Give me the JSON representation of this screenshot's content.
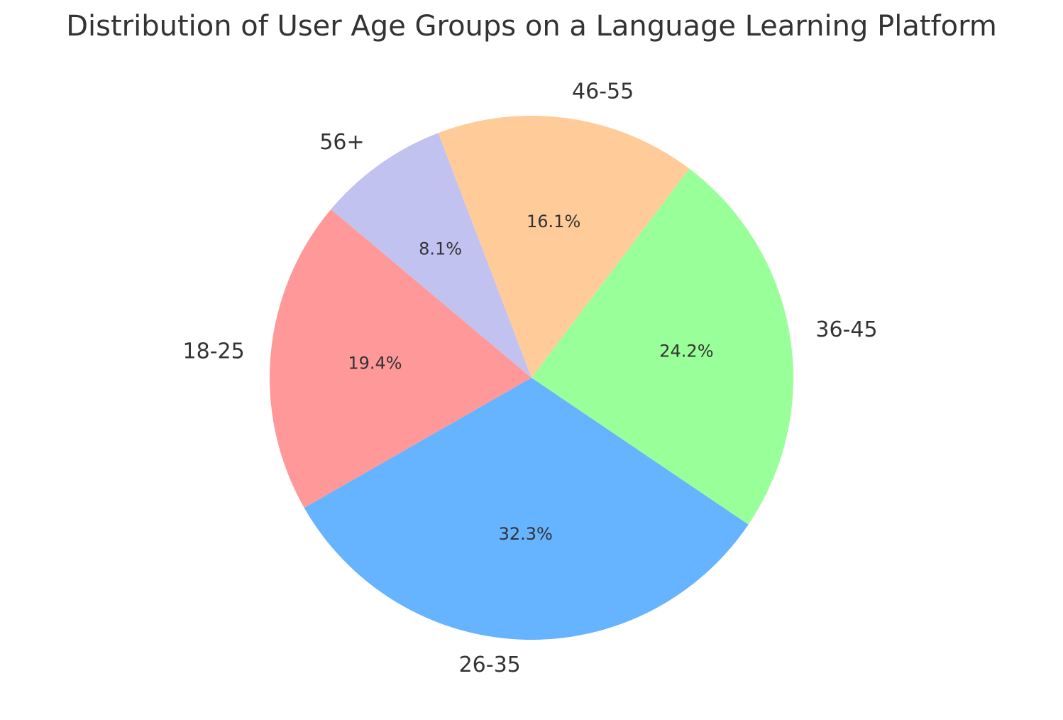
{
  "chart_data": {
    "type": "pie",
    "title": "Distribution of User Age Groups on a Language Learning Platform",
    "categories": [
      "18-25",
      "26-35",
      "36-45",
      "46-55",
      "56+"
    ],
    "values": [
      19.4,
      32.3,
      24.2,
      16.1,
      8.1
    ],
    "value_labels": [
      "19.4%",
      "32.3%",
      "24.2%",
      "16.1%",
      "8.1%"
    ],
    "colors": [
      "#ff9999",
      "#66b3ff",
      "#99ff99",
      "#ffcc99",
      "#c2c2f0"
    ],
    "start_angle_deg": 140,
    "direction": "counterclockwise",
    "legend": "none"
  }
}
